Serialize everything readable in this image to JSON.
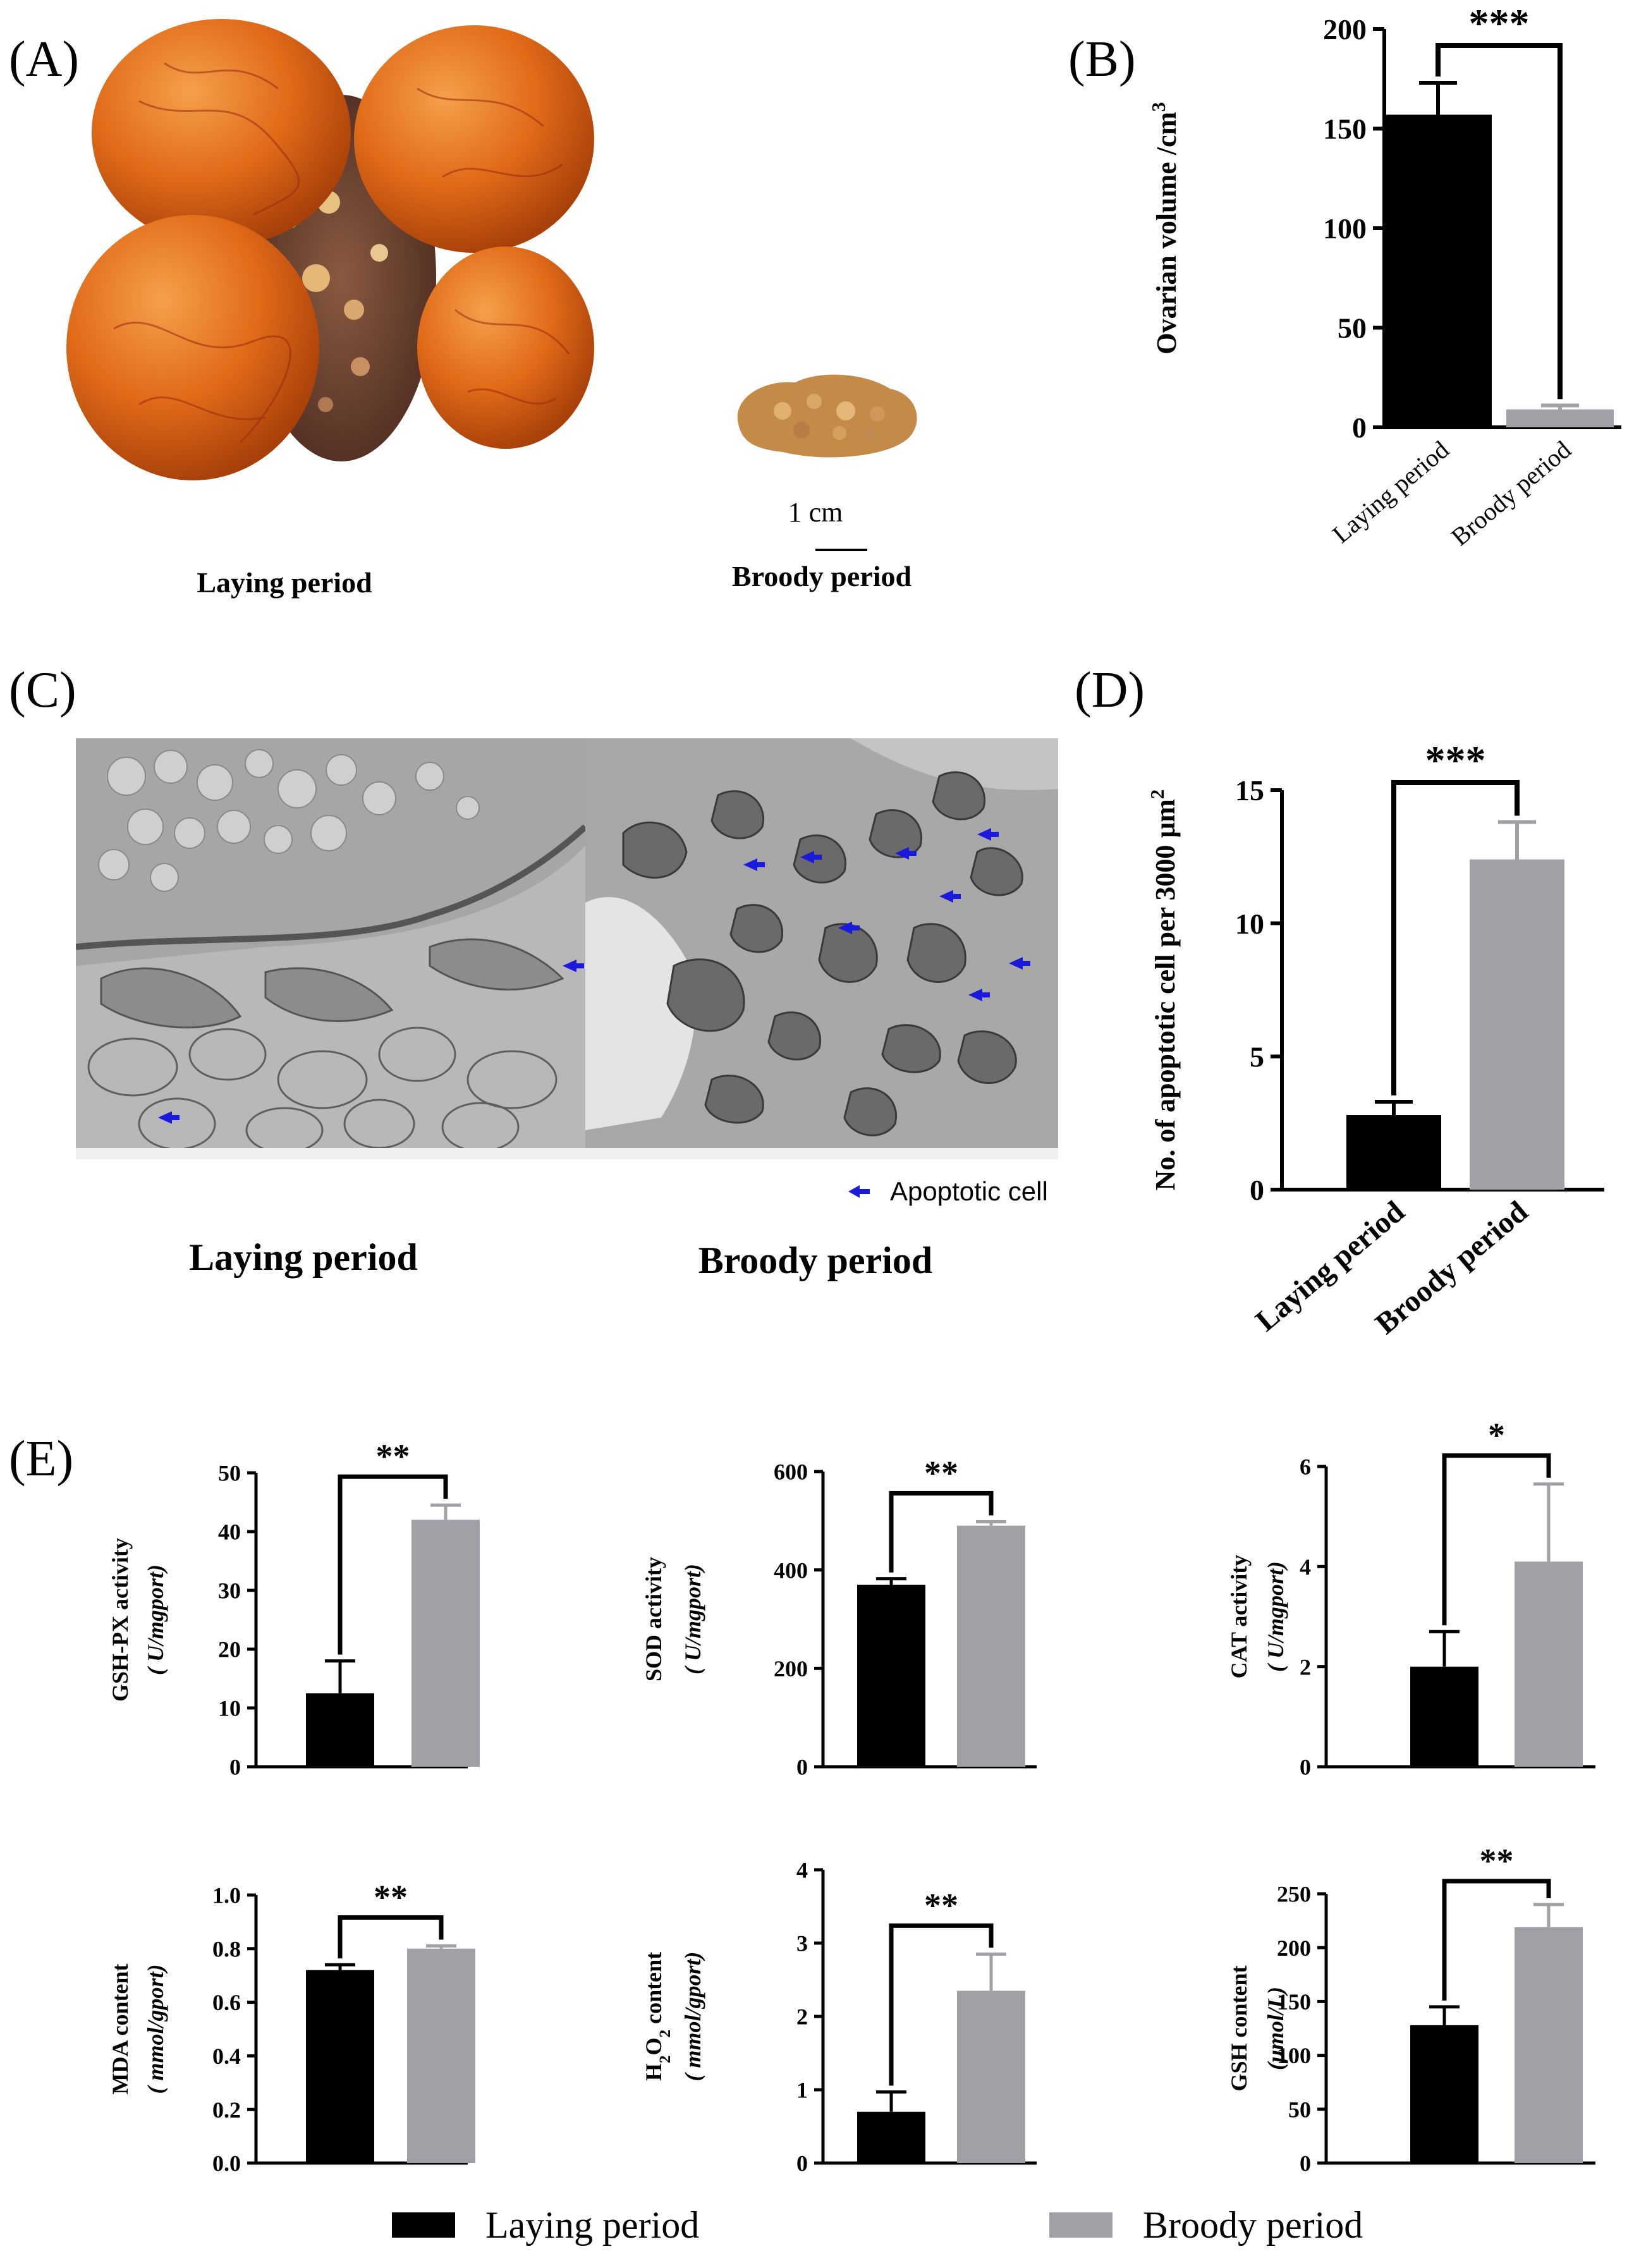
{
  "panels": {
    "a": {
      "letter": "(A)",
      "label_laying": "Laying period",
      "label_broody": "Broody period",
      "scale_text": "1 cm"
    },
    "b": {
      "letter": "(B)"
    },
    "c": {
      "letter": "(C)",
      "label_laying": "Laying period",
      "label_broody": "Broody period",
      "legend_text": "Apoptotic cell",
      "apoptotic_marker_count_laying": 2,
      "apoptotic_marker_count_broody": 8
    },
    "d": {
      "letter": "(D)"
    },
    "e": {
      "letter": "(E)"
    }
  },
  "colors": {
    "laying": "#000000",
    "broody": "#a0a0a6",
    "arrow": "#1a1adc",
    "ovary_follicle": "#e06a18",
    "broody_ovary": "#c48a48"
  },
  "legend": {
    "laying": "Laying period",
    "broody": "Broody period"
  },
  "chart_data": [
    {
      "id": "B",
      "type": "bar",
      "categories": [
        "Laying period",
        "Broody period"
      ],
      "values": [
        157,
        9
      ],
      "errors": [
        16,
        2
      ],
      "ylabel": "Ovarian volume /cm",
      "ylabel_sup": "3",
      "ylim": [
        0,
        200
      ],
      "yticks": [
        0,
        50,
        100,
        150,
        200
      ],
      "significance": "***"
    },
    {
      "id": "D",
      "type": "bar",
      "categories": [
        "Laying period",
        "Broody period"
      ],
      "values": [
        2.8,
        12.4
      ],
      "errors": [
        0.5,
        1.4
      ],
      "ylabel": "No. of apoptotic cell per 3000 μm",
      "ylabel_sup": "2",
      "ylim": [
        0,
        15
      ],
      "yticks": [
        0,
        5,
        10,
        15
      ],
      "significance": "***"
    },
    {
      "id": "E1",
      "type": "bar",
      "categories": [
        "Laying period",
        "Broody period"
      ],
      "values": [
        12.5,
        42
      ],
      "errors": [
        5.5,
        2.5
      ],
      "ylabel": "GSH-PX activity",
      "ylabel2": "( U/mgport)",
      "ylim": [
        0,
        50
      ],
      "yticks": [
        0,
        10,
        20,
        30,
        40,
        50
      ],
      "significance": "**"
    },
    {
      "id": "E2",
      "type": "bar",
      "categories": [
        "Laying period",
        "Broody period"
      ],
      "values": [
        370,
        490
      ],
      "errors": [
        12,
        8
      ],
      "ylabel": "SOD activity",
      "ylabel2": "( U/mgport)",
      "ylim": [
        0,
        600
      ],
      "yticks": [
        0,
        200,
        400,
        600
      ],
      "significance": "**"
    },
    {
      "id": "E3",
      "type": "bar",
      "categories": [
        "Laying period",
        "Broody period"
      ],
      "values": [
        2.0,
        4.1
      ],
      "errors": [
        0.7,
        1.55
      ],
      "ylabel": "CAT activity",
      "ylabel2": "( U/mgport)",
      "ylim": [
        0,
        6
      ],
      "yticks": [
        0,
        2,
        4,
        6
      ],
      "significance": "*"
    },
    {
      "id": "E4",
      "type": "bar",
      "categories": [
        "Laying period",
        "Broody period"
      ],
      "values": [
        0.72,
        0.8
      ],
      "errors": [
        0.02,
        0.01
      ],
      "ylabel": "MDA content",
      "ylabel2": "( mmol/gport)",
      "ylim": [
        0,
        1.0
      ],
      "yticks": [
        0.0,
        0.2,
        0.4,
        0.6,
        0.8,
        1.0
      ],
      "tick_decimals": 1,
      "significance": "**"
    },
    {
      "id": "E5",
      "type": "bar",
      "categories": [
        "Laying period",
        "Broody period"
      ],
      "values": [
        0.7,
        2.35
      ],
      "errors": [
        0.27,
        0.5
      ],
      "ylabel": "H",
      "ylabel_sub1": "2",
      "ylabel_mid": "O",
      "ylabel_sub2": "2",
      "ylabel_tail": " content",
      "ylabel2": "( mmol/gport)",
      "ylim": [
        0,
        4
      ],
      "yticks": [
        0,
        1,
        2,
        3,
        4
      ],
      "significance": "**"
    },
    {
      "id": "E6",
      "type": "bar",
      "categories": [
        "Laying period",
        "Broody period"
      ],
      "values": [
        128,
        219
      ],
      "errors": [
        17,
        21
      ],
      "ylabel": "GSH content",
      "ylabel2": "(μmol/L)",
      "ylim": [
        0,
        250
      ],
      "yticks": [
        0,
        50,
        100,
        150,
        200,
        250
      ],
      "significance": "**"
    }
  ]
}
